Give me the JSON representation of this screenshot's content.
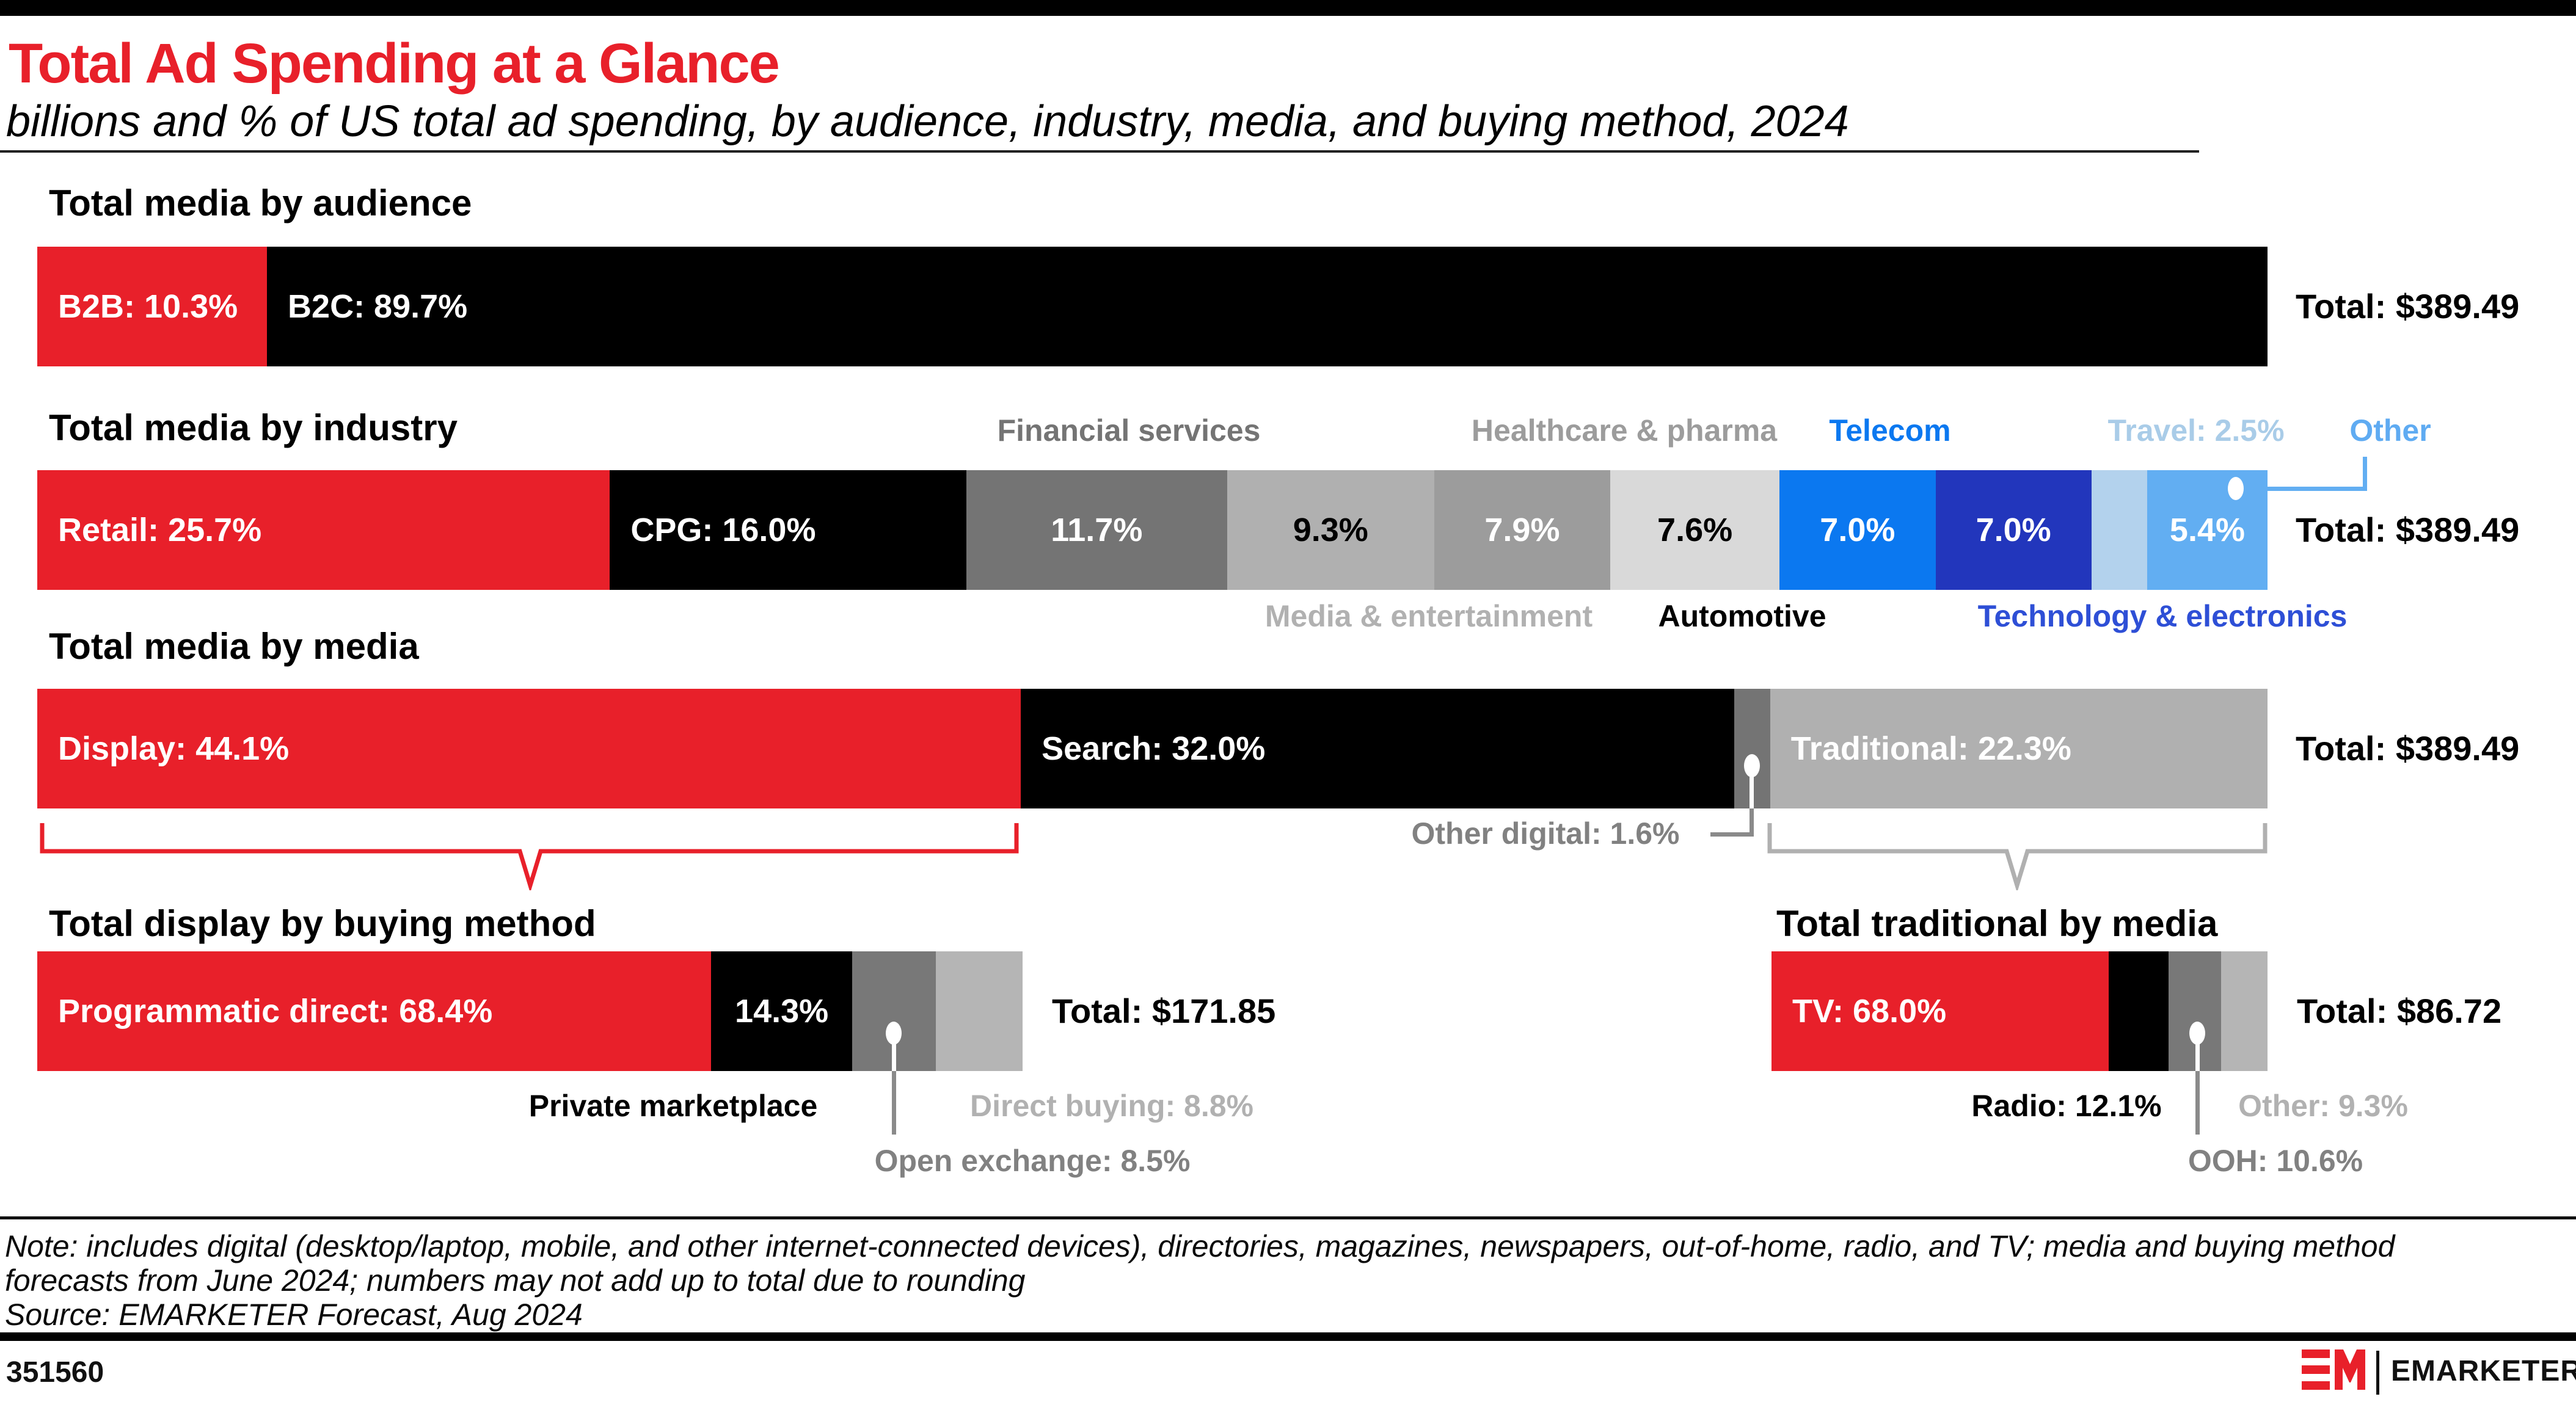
{
  "header": {
    "title": "Total Ad Spending at a Glance",
    "subtitle": "billions and % of US total ad spending, by audience, industry, media, and buying method, 2024"
  },
  "colors": {
    "red": "#e8202a",
    "black": "#000000",
    "dark_gray": "#747474",
    "mid_gray": "#9c9c9c",
    "light_gray": "#b0b0b0",
    "pale_gray": "#d9d9d9",
    "bright_blue": "#0b78f0",
    "navy_blue": "#2236bc",
    "pale_blue": "#b3d2ed",
    "sky_blue": "#62aef2",
    "label_gray": "#818181",
    "label_light_gray": "#b1b1b1",
    "tech_label_blue": "#2e4fd6",
    "travel_label_blue": "#a9cce8",
    "connector_gray": "#8a8a8a"
  },
  "bars": {
    "audience": {
      "heading": "Total media by audience",
      "total": "Total: $389.49",
      "segments": [
        {
          "name": "b2b",
          "label": "B2B: 10.3%",
          "pct": 10.3,
          "bg": "#e8202a",
          "fg": "#ffffff",
          "align": "left"
        },
        {
          "name": "b2c",
          "label": "B2C: 89.7%",
          "pct": 89.7,
          "bg": "#000000",
          "fg": "#ffffff",
          "align": "left"
        }
      ]
    },
    "industry": {
      "heading": "Total media by industry",
      "total": "Total: $389.49",
      "segments": [
        {
          "name": "retail",
          "label": "Retail: 25.7%",
          "pct": 25.7,
          "bg": "#e8202a",
          "fg": "#ffffff",
          "align": "left"
        },
        {
          "name": "cpg",
          "label": "CPG: 16.0%",
          "pct": 16.0,
          "bg": "#000000",
          "fg": "#ffffff",
          "align": "left"
        },
        {
          "name": "financial-services",
          "label": "11.7%",
          "pct": 11.7,
          "bg": "#747474",
          "fg": "#ffffff",
          "align": "center"
        },
        {
          "name": "media-entertainment",
          "label": "9.3%",
          "pct": 9.3,
          "bg": "#b0b0b0",
          "fg": "#000000",
          "align": "center"
        },
        {
          "name": "healthcare-pharma",
          "label": "7.9%",
          "pct": 7.9,
          "bg": "#9c9c9c",
          "fg": "#ffffff",
          "align": "center"
        },
        {
          "name": "automotive",
          "label": "7.6%",
          "pct": 7.6,
          "bg": "#d9d9d9",
          "fg": "#000000",
          "align": "center"
        },
        {
          "name": "telecom",
          "label": "7.0%",
          "pct": 7.0,
          "bg": "#0b78f0",
          "fg": "#ffffff",
          "align": "center"
        },
        {
          "name": "technology-electronics",
          "label": "7.0%",
          "pct": 7.0,
          "bg": "#2236bc",
          "fg": "#ffffff",
          "align": "center"
        },
        {
          "name": "travel",
          "label": "",
          "pct": 2.5,
          "bg": "#b3d2ed",
          "fg": "#000000",
          "align": "center"
        },
        {
          "name": "other",
          "label": "5.4%",
          "pct": 5.4,
          "bg": "#62aef2",
          "fg": "#ffffff",
          "align": "center"
        }
      ]
    },
    "media": {
      "heading": "Total media by media",
      "total": "Total: $389.49",
      "segments": [
        {
          "name": "display",
          "label": "Display: 44.1%",
          "pct": 44.1,
          "bg": "#e8202a",
          "fg": "#ffffff",
          "align": "left"
        },
        {
          "name": "search",
          "label": "Search: 32.0%",
          "pct": 32.0,
          "bg": "#000000",
          "fg": "#ffffff",
          "align": "left"
        },
        {
          "name": "other-digital",
          "label": "",
          "pct": 1.6,
          "bg": "#747474",
          "fg": "#ffffff",
          "align": "center"
        },
        {
          "name": "traditional",
          "label": "Traditional: 22.3%",
          "pct": 22.3,
          "bg": "#b0b0b0",
          "fg": "#ffffff",
          "align": "left"
        }
      ]
    },
    "display": {
      "heading": "Total display by buying method",
      "total": "Total: $171.85",
      "segments": [
        {
          "name": "programmatic-direct",
          "label": "Programmatic direct: 68.4%",
          "pct": 68.4,
          "bg": "#e8202a",
          "fg": "#ffffff",
          "align": "left"
        },
        {
          "name": "private-marketplace",
          "label": "14.3%",
          "pct": 14.3,
          "bg": "#000000",
          "fg": "#ffffff",
          "align": "center"
        },
        {
          "name": "open-exchange",
          "label": "",
          "pct": 8.5,
          "bg": "#787878",
          "fg": "#ffffff",
          "align": "center"
        },
        {
          "name": "direct-buying",
          "label": "",
          "pct": 8.8,
          "bg": "#b5b5b5",
          "fg": "#000000",
          "align": "center"
        }
      ]
    },
    "traditional": {
      "heading": "Total traditional by media",
      "total": "Total: $86.72",
      "segments": [
        {
          "name": "tv",
          "label": "TV: 68.0%",
          "pct": 68.0,
          "bg": "#e8202a",
          "fg": "#ffffff",
          "align": "left"
        },
        {
          "name": "radio",
          "label": "",
          "pct": 12.1,
          "bg": "#000000",
          "fg": "#ffffff",
          "align": "center"
        },
        {
          "name": "ooh",
          "label": "",
          "pct": 10.6,
          "bg": "#787878",
          "fg": "#ffffff",
          "align": "center"
        },
        {
          "name": "other",
          "label": "",
          "pct": 9.3,
          "bg": "#b5b5b5",
          "fg": "#000000",
          "align": "center"
        }
      ]
    }
  },
  "industry_labels_above": {
    "financial": {
      "text": "Financial services",
      "color": "#747474"
    },
    "healthcare": {
      "text": "Healthcare & pharma",
      "color": "#9c9c9c"
    },
    "telecom": {
      "text": "Telecom",
      "color": "#0b78f0"
    },
    "travel": {
      "text": "Travel: 2.5%",
      "color": "#a9cce8"
    },
    "other": {
      "text": "Other",
      "color": "#5fabf2"
    }
  },
  "industry_labels_below": {
    "media_entertainment": {
      "text": "Media & entertainment",
      "color": "#b1b1b1"
    },
    "automotive": {
      "text": "Automotive",
      "color": "#000000"
    },
    "technology": {
      "text": "Technology & electronics",
      "color": "#2e4fd6"
    }
  },
  "callouts": {
    "other_digital": "Other digital: 1.6%",
    "private_marketplace": "Private marketplace",
    "direct_buying": "Direct buying: 8.8%",
    "open_exchange": "Open exchange: 8.5%",
    "radio": "Radio: 12.1%",
    "other_traditional": "Other: 9.3%",
    "ooh": "OOH: 10.6%"
  },
  "note": {
    "line1": "Note: includes digital (desktop/laptop, mobile, and other internet-connected devices), directories, magazines, newspapers, out-of-home, radio, and TV; media and buying method",
    "line2": "forecasts from June 2024; numbers may not add up to total due to rounding",
    "source": "Source: EMARKETER Forecast, Aug 2024"
  },
  "footer": {
    "chart_id": "351560",
    "brand": "EMARKETER"
  },
  "chart_data": [
    {
      "type": "bar",
      "title": "Total media by audience",
      "categories": [
        "B2B",
        "B2C"
      ],
      "values": [
        10.3,
        89.7
      ],
      "units": "% of US total ad spending",
      "total_billions_usd": 389.49,
      "orientation": "horizontal-stacked"
    },
    {
      "type": "bar",
      "title": "Total media by industry",
      "categories": [
        "Retail",
        "CPG",
        "Financial services",
        "Media & entertainment",
        "Healthcare & pharma",
        "Automotive",
        "Telecom",
        "Technology & electronics",
        "Travel",
        "Other"
      ],
      "values": [
        25.7,
        16.0,
        11.7,
        9.3,
        7.9,
        7.6,
        7.0,
        7.0,
        2.5,
        5.4
      ],
      "units": "% of US total ad spending",
      "total_billions_usd": 389.49,
      "orientation": "horizontal-stacked"
    },
    {
      "type": "bar",
      "title": "Total media by media",
      "categories": [
        "Display",
        "Search",
        "Other digital",
        "Traditional"
      ],
      "values": [
        44.1,
        32.0,
        1.6,
        22.3
      ],
      "units": "% of US total ad spending",
      "total_billions_usd": 389.49,
      "orientation": "horizontal-stacked"
    },
    {
      "type": "bar",
      "title": "Total display by buying method",
      "categories": [
        "Programmatic direct",
        "Private marketplace",
        "Open exchange",
        "Direct buying"
      ],
      "values": [
        68.4,
        14.3,
        8.5,
        8.8
      ],
      "units": "% of display ad spending",
      "total_billions_usd": 171.85,
      "orientation": "horizontal-stacked"
    },
    {
      "type": "bar",
      "title": "Total traditional by media",
      "categories": [
        "TV",
        "Radio",
        "OOH",
        "Other"
      ],
      "values": [
        68.0,
        12.1,
        10.6,
        9.3
      ],
      "units": "% of traditional ad spending",
      "total_billions_usd": 86.72,
      "orientation": "horizontal-stacked"
    }
  ]
}
